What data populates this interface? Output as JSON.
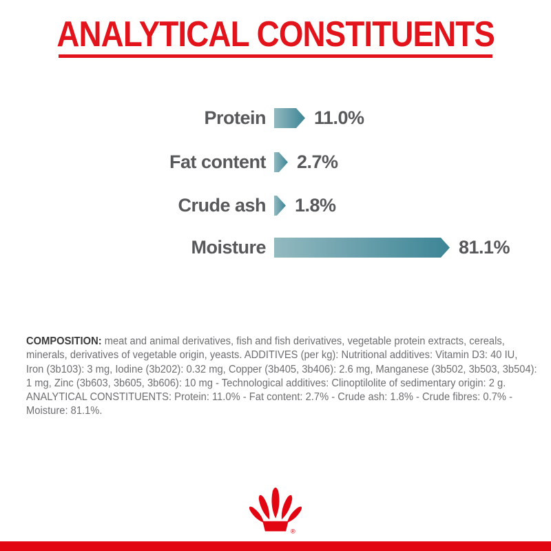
{
  "header": {
    "title": "ANALYTICAL CONSTITUENTS",
    "accent_color": "#e2131b"
  },
  "chart_data": {
    "type": "bar",
    "orientation": "horizontal",
    "categories": [
      "Protein",
      "Fat content",
      "Crude ash",
      "Moisture"
    ],
    "values": [
      11.0,
      2.7,
      1.8,
      81.1
    ],
    "value_labels": [
      "11.0%",
      "2.7%",
      "1.8%",
      "81.1%"
    ],
    "xlim": [
      0,
      100
    ],
    "grid": false,
    "legend": "none",
    "bar_color_start": "#93b9c0",
    "bar_color_end": "#3c8596",
    "label_color": "#57585a"
  },
  "composition": {
    "bold_label": "COMPOSITION:",
    "bold_label_color": "#3a3a3a",
    "text_color": "#6d6e70",
    "lines": [
      " meat and animal derivatives, fish and fish derivatives, vegetable protein extracts, cereals,",
      "minerals, derivatives of vegetable origin, yeasts. ADDITIVES (per kg): Nutritional additives: Vitamin D3: 40 IU,",
      "Iron (3b103): 3 mg, Iodine (3b202): 0.32 mg, Copper (3b405, 3b406): 2.6 mg, Manganese (3b502, 3b503, 3b504):",
      "1 mg, Zinc (3b603, 3b605, 3b606): 10 mg - Technological additives: Clinoptilolite of sedimentary origin: 2 g.",
      "ANALYTICAL CONSTITUENTS: Protein: 11.0% - Fat content: 2.7% - Crude ash: 1.8% - Crude fibres: 0.7% -",
      "Moisture: 81.1%."
    ]
  },
  "footer": {
    "logo": "royal-canin-crown",
    "logo_registered_mark": "®",
    "logo_color": "#e20613",
    "band_color": "#e20613"
  }
}
